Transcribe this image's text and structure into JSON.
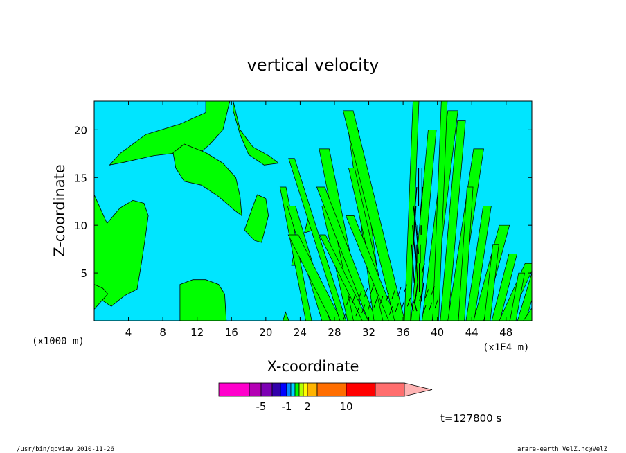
{
  "chart_data": {
    "type": "heatmap",
    "title": "vertical velocity",
    "xlabel": "X-coordinate",
    "ylabel": "Z-coordinate",
    "x_units_left": "(x1000 m)",
    "x_units_right": "(x1E4 m)",
    "x_ticks": [
      4,
      8,
      12,
      16,
      20,
      24,
      28,
      32,
      36,
      40,
      44,
      48
    ],
    "y_ticks": [
      5,
      10,
      15,
      20
    ],
    "xlim": [
      0,
      51
    ],
    "ylim": [
      0,
      23
    ],
    "time_label": "t=127800 s",
    "colorbar": {
      "colors": [
        "#ff00cc",
        "#b400b4",
        "#7d00b4",
        "#3200aa",
        "#0000ff",
        "#0087ff",
        "#00d2ff",
        "#00ff00",
        "#b4ff00",
        "#ffff00",
        "#ffb400",
        "#ff6e00",
        "#ff0000",
        "#ff6e6e",
        "#ffb4b4"
      ],
      "tick_labels": [
        "-5",
        "-1",
        "2",
        "10"
      ]
    },
    "field_colors": {
      "background": "#00e5ff",
      "positive": "#00ff00",
      "contour": "#000000",
      "strong": "#000000"
    }
  },
  "footer": {
    "left": "/usr/bin/gpview   2010-11-26",
    "right": "arare-earth_VelZ.nc@VelZ"
  }
}
